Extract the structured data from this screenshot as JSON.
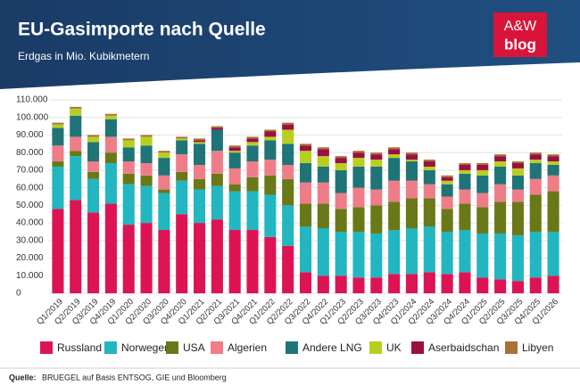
{
  "logo": {
    "top": "A&W",
    "bottom": "blog"
  },
  "chart_data": {
    "type": "stacked_bar",
    "title": "EU-Gasimporte nach Quelle",
    "subtitle": "Erdgas in Mio. Kubikmetern",
    "source_label": "Quelle:",
    "source": "BRUEGEL auf Basis ENTSOG, GIE und Bloomberg",
    "categories": [
      "Q1/2019",
      "Q2/2019",
      "Q3/2019",
      "Q4/2019",
      "Q1/2020",
      "Q2/2020",
      "Q3/2020",
      "Q4/2020",
      "Q1/2021",
      "Q2/2021",
      "Q3/2021",
      "Q4/2021",
      "Q1/2022",
      "Q2/2022",
      "Q3/2022",
      "Q4/2022",
      "Q1/2023",
      "Q2/2023",
      "Q3/2023",
      "Q4/2023",
      "Q1/2024",
      "Q2/2024",
      "Q3/2024",
      "Q4/2024",
      "Q1/2025",
      "Q2/2025",
      "Q3/2025",
      "Q4/2025",
      "Q1/2026"
    ],
    "series": [
      {
        "name": "Russland",
        "color": "#dc1454",
        "values": [
          48000,
          53000,
          46000,
          51000,
          39000,
          40000,
          36000,
          45000,
          40000,
          42000,
          36000,
          36000,
          32000,
          27000,
          12000,
          10000,
          10000,
          9000,
          9000,
          11000,
          11000,
          12000,
          11000,
          12000,
          9000,
          8000,
          7000,
          9000,
          10000
        ]
      },
      {
        "name": "Norwegen",
        "color": "#22b6c0",
        "values": [
          24000,
          25000,
          19000,
          23000,
          23000,
          21000,
          21000,
          19000,
          19000,
          19000,
          22000,
          22000,
          24000,
          23000,
          26000,
          27000,
          25000,
          26000,
          25000,
          25000,
          26000,
          26000,
          24000,
          24000,
          25000,
          26000,
          26000,
          26000,
          25000
        ]
      },
      {
        "name": "USA",
        "color": "#6a7817",
        "values": [
          3000,
          3000,
          4000,
          6000,
          6000,
          6000,
          2000,
          5000,
          6000,
          7000,
          4000,
          8000,
          11000,
          15000,
          13000,
          14000,
          13000,
          14000,
          16000,
          16000,
          17000,
          16000,
          13000,
          15000,
          15000,
          18000,
          19000,
          21000,
          23000
        ]
      },
      {
        "name": "Algerien",
        "color": "#ee7d88",
        "values": [
          9000,
          8000,
          6000,
          9000,
          7000,
          7000,
          8000,
          10000,
          8000,
          13000,
          9000,
          9000,
          9000,
          8000,
          12000,
          12000,
          9000,
          11000,
          9000,
          12000,
          10000,
          8000,
          7000,
          8000,
          8000,
          10000,
          7000,
          9000,
          9000
        ]
      },
      {
        "name": "Andere LNG",
        "color": "#1f7478",
        "values": [
          10000,
          12000,
          11000,
          10000,
          8000,
          10000,
          10000,
          8000,
          12000,
          12000,
          9000,
          9000,
          11000,
          12000,
          11000,
          9000,
          13000,
          12000,
          13000,
          13000,
          11000,
          8000,
          7000,
          9000,
          10000,
          10000,
          8000,
          9000,
          6000
        ]
      },
      {
        "name": "UK",
        "color": "#b7cf1f",
        "values": [
          2000,
          4000,
          3000,
          2000,
          4000,
          5000,
          3000,
          1000,
          1000,
          0,
          1000,
          2000,
          2000,
          8000,
          7000,
          6000,
          4000,
          5000,
          4000,
          2000,
          1000,
          2000,
          2000,
          2000,
          3000,
          3000,
          4000,
          2000,
          2000
        ]
      },
      {
        "name": "Aserbaidschan",
        "color": "#9b1042",
        "values": [
          0,
          0,
          0,
          0,
          0,
          0,
          0,
          0,
          1000,
          1000,
          2000,
          2000,
          3000,
          3000,
          3000,
          4000,
          3000,
          3000,
          3000,
          3000,
          3000,
          3000,
          2000,
          3000,
          3000,
          3000,
          3000,
          3000,
          3000
        ]
      },
      {
        "name": "Libyen",
        "color": "#a77237",
        "values": [
          1000,
          1000,
          1000,
          1000,
          1000,
          1000,
          1000,
          1000,
          1000,
          1000,
          1000,
          1000,
          1000,
          1000,
          1000,
          1000,
          1000,
          1000,
          1000,
          1000,
          1000,
          1000,
          1000,
          1000,
          1000,
          1000,
          1000,
          1000,
          1000
        ]
      }
    ],
    "ylim": [
      0,
      110000
    ],
    "yticks": [
      0,
      {
        "value": 10000,
        "label": "10.000"
      },
      {
        "value": 20000,
        "label": "20.000"
      },
      {
        "value": 30000,
        "label": "30.000"
      },
      {
        "value": 40000,
        "label": "40.000"
      },
      {
        "value": 50000,
        "label": "50.000"
      },
      {
        "value": 60000,
        "label": "60.000"
      },
      {
        "value": 70000,
        "label": "70.000"
      },
      {
        "value": 80000,
        "label": "80.000"
      },
      {
        "value": 90000,
        "label": "90.000"
      },
      {
        "value": 100000,
        "label": "100.000"
      },
      {
        "value": 110000,
        "label": "110.000"
      }
    ],
    "grid": true
  }
}
